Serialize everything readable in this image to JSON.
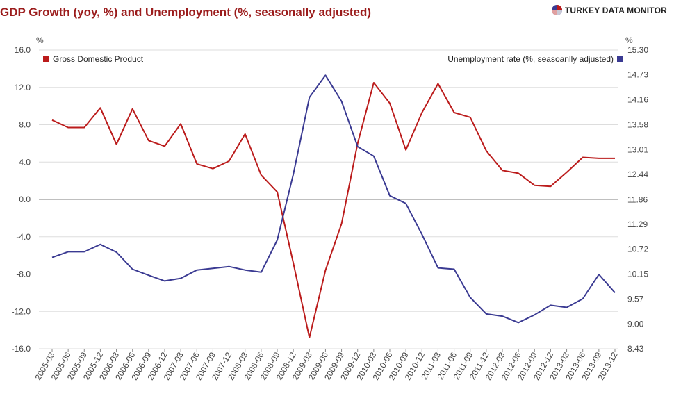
{
  "title": "GDP Growth (yoy, %) and Unemployment (%, seasonally adjusted)",
  "brand": "TURKEY DATA MONITOR",
  "chart_data": {
    "type": "line",
    "categories": [
      "2005-03",
      "2005-06",
      "2005-09",
      "2005-12",
      "2006-03",
      "2006-06",
      "2006-09",
      "2006-12",
      "2007-03",
      "2007-06",
      "2007-09",
      "2007-12",
      "2008-03",
      "2008-06",
      "2008-09",
      "2008-12",
      "2009-03",
      "2009-06",
      "2009-09",
      "2009-12",
      "2010-03",
      "2010-06",
      "2010-09",
      "2010-12",
      "2011-03",
      "2011-06",
      "2011-09",
      "2011-12",
      "2012-03",
      "2012-06",
      "2012-09",
      "2012-12",
      "2013-03",
      "2013-06",
      "2013-09",
      "2013-12"
    ],
    "left_axis": {
      "unit": "%",
      "ticks": [
        "16.0",
        "12.0",
        "8.0",
        "4.0",
        "0.0",
        "-4.0",
        "-8.0",
        "-12.0",
        "-16.0"
      ],
      "ylim": [
        -16,
        16
      ]
    },
    "right_axis": {
      "unit": "%",
      "ticks": [
        "15.30",
        "14.73",
        "14.16",
        "13.58",
        "13.01",
        "12.44",
        "11.86",
        "11.29",
        "10.72",
        "10.15",
        "9.57",
        "9.00",
        "8.43"
      ],
      "ylim": [
        8.43,
        15.3
      ]
    },
    "series": [
      {
        "name": "Gross Domestic Product",
        "axis": "left",
        "color": "#bb1b1b",
        "values": [
          8.5,
          7.7,
          7.7,
          9.8,
          5.9,
          9.7,
          6.3,
          5.7,
          8.1,
          3.8,
          3.3,
          4.1,
          7.0,
          2.6,
          0.8,
          -6.8,
          -14.8,
          -7.6,
          -2.6,
          6.0,
          12.5,
          10.3,
          5.3,
          9.3,
          12.4,
          9.3,
          8.8,
          5.2,
          3.1,
          2.8,
          1.5,
          1.4,
          2.9,
          4.5,
          4.4,
          4.4
        ]
      },
      {
        "name": "Unemployment rate (%, seasoanlly adjusted)",
        "axis": "right",
        "color": "#3a3a92",
        "values": [
          10.53,
          10.66,
          10.66,
          10.83,
          10.65,
          10.26,
          10.12,
          9.99,
          10.05,
          10.24,
          10.28,
          10.32,
          10.24,
          10.19,
          10.93,
          12.44,
          14.21,
          14.72,
          14.12,
          13.08,
          12.86,
          11.95,
          11.77,
          11.06,
          10.29,
          10.26,
          9.61,
          9.23,
          9.18,
          9.03,
          9.21,
          9.43,
          9.38,
          9.58,
          10.14,
          9.72
        ]
      }
    ],
    "grid": true,
    "legend": [
      "top-left",
      "top-right"
    ]
  }
}
